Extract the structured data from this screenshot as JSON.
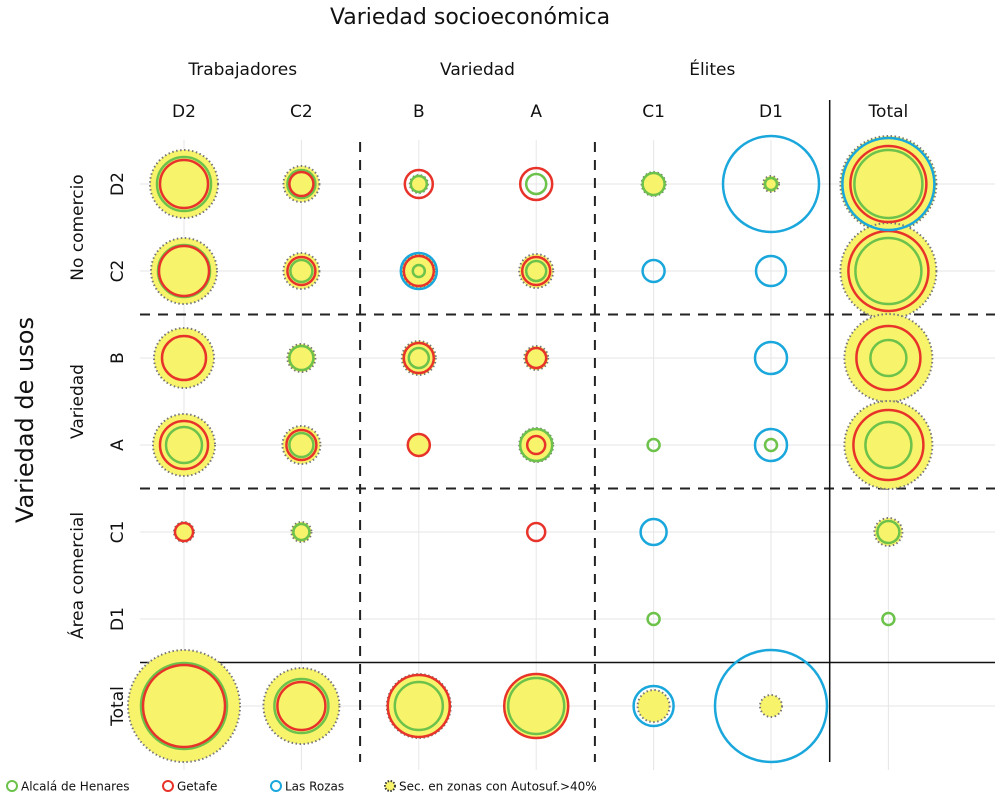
{
  "chart_data": {
    "type": "bubble-matrix",
    "title": "Variedad socioeconómica",
    "y_axis_label": "Variedad de usos",
    "column_groups": [
      "Trabajadores",
      "Variedad",
      "Élites"
    ],
    "row_groups": [
      "No comercio",
      "Variedad",
      "Área comercial"
    ],
    "columns": [
      "D2",
      "C2",
      "B",
      "A",
      "C1",
      "D1",
      "Total"
    ],
    "rows": [
      "D2",
      "C2",
      "B",
      "A",
      "C1",
      "D1",
      "Total"
    ],
    "series": [
      {
        "name": "Sec. en zonas con Autosuf.>40%",
        "color": "#f7f36b",
        "values": [
          [
            34,
            18,
            9,
            null,
            12,
            8,
            48
          ],
          [
            33,
            18,
            17,
            17,
            null,
            null,
            48
          ],
          [
            30,
            14,
            17,
            12,
            null,
            null,
            44
          ],
          [
            31,
            19,
            11,
            17,
            null,
            null,
            44
          ],
          [
            10,
            10,
            null,
            null,
            null,
            null,
            14
          ],
          [
            null,
            null,
            null,
            null,
            null,
            null,
            null
          ],
          [
            56,
            38,
            32,
            32,
            16,
            11,
            null
          ]
        ]
      },
      {
        "name": "Alcalá de Henares",
        "color": "#6cc24a",
        "values": [
          [
            27,
            14,
            8,
            10,
            11,
            6,
            34
          ],
          [
            26,
            11,
            6,
            10,
            null,
            null,
            33
          ],
          [
            null,
            12,
            10,
            null,
            null,
            null,
            18
          ],
          [
            18,
            12,
            null,
            16,
            6,
            6,
            23
          ],
          [
            null,
            8,
            null,
            null,
            null,
            null,
            11
          ],
          [
            null,
            null,
            null,
            null,
            6,
            null,
            6
          ],
          [
            43,
            27,
            24,
            28,
            null,
            null,
            null
          ]
        ]
      },
      {
        "name": "Getafe",
        "color": "#e8332a",
        "values": [
          [
            24,
            12,
            14,
            16,
            null,
            null,
            38
          ],
          [
            25,
            14,
            15,
            14,
            null,
            null,
            40
          ],
          [
            22,
            null,
            15,
            10,
            null,
            null,
            32
          ],
          [
            24,
            15,
            11,
            9,
            null,
            null,
            35
          ],
          [
            9,
            null,
            null,
            9,
            null,
            null,
            null
          ],
          [
            null,
            null,
            null,
            null,
            null,
            null,
            null
          ],
          [
            41,
            24,
            31,
            32,
            null,
            null,
            null
          ]
        ]
      },
      {
        "name": "Las Rozas",
        "color": "#1aa7dc",
        "values": [
          [
            null,
            null,
            null,
            null,
            null,
            48,
            46
          ],
          [
            null,
            null,
            18,
            null,
            11,
            15,
            null
          ],
          [
            null,
            null,
            null,
            null,
            null,
            16,
            null
          ],
          [
            null,
            null,
            null,
            null,
            null,
            16,
            null
          ],
          [
            null,
            null,
            null,
            null,
            13,
            null,
            null
          ],
          [
            null,
            null,
            null,
            null,
            null,
            null,
            null
          ],
          [
            null,
            null,
            null,
            null,
            20,
            56,
            null
          ]
        ]
      }
    ]
  }
}
